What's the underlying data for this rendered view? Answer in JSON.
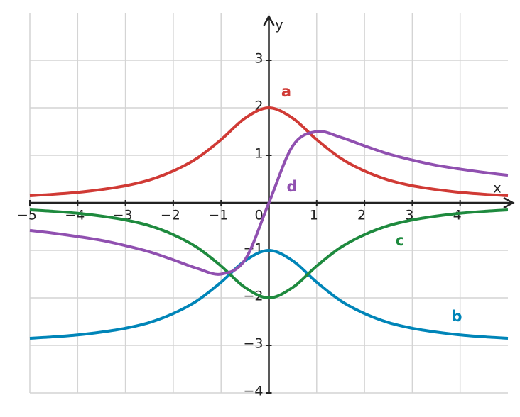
{
  "chart_data": {
    "type": "line",
    "x_label": "x",
    "y_label": "y",
    "x": [
      -5,
      -4.5,
      -4,
      -3.5,
      -3,
      -2.5,
      -2,
      -1.5,
      -1,
      -0.5,
      0,
      0.5,
      1,
      1.5,
      2,
      2.5,
      3,
      3.5,
      4,
      4.5,
      5
    ],
    "series": [
      {
        "name": "a",
        "color": "#d03a35",
        "values": [
          0.15,
          0.18,
          0.22,
          0.28,
          0.36,
          0.48,
          0.67,
          0.94,
          1.33,
          1.78,
          2,
          1.78,
          1.33,
          0.94,
          0.67,
          0.48,
          0.36,
          0.28,
          0.22,
          0.18,
          0.15
        ]
      },
      {
        "name": "b",
        "color": "#0085b8",
        "values": [
          -2.85,
          -2.82,
          -2.78,
          -2.72,
          -2.64,
          -2.52,
          -2.33,
          -2.06,
          -1.67,
          -1.22,
          -1,
          -1.22,
          -1.67,
          -2.06,
          -2.33,
          -2.52,
          -2.64,
          -2.72,
          -2.78,
          -2.82,
          -2.85
        ]
      },
      {
        "name": "c",
        "color": "#1e8a3e",
        "values": [
          -0.15,
          -0.18,
          -0.22,
          -0.28,
          -0.36,
          -0.48,
          -0.67,
          -0.94,
          -1.33,
          -1.78,
          -2,
          -1.78,
          -1.33,
          -0.94,
          -0.67,
          -0.48,
          -0.36,
          -0.28,
          -0.22,
          -0.18,
          -0.15
        ]
      },
      {
        "name": "d",
        "color": "#9050b0",
        "values": [
          -0.58,
          -0.64,
          -0.71,
          -0.79,
          -0.9,
          -1.03,
          -1.2,
          -1.38,
          -1.5,
          -1.2,
          0,
          1.2,
          1.5,
          1.38,
          1.2,
          1.03,
          0.9,
          0.79,
          0.71,
          0.64,
          0.58
        ]
      }
    ],
    "xlim": [
      -5,
      5
    ],
    "ylim": [
      -4,
      4
    ],
    "xticks": [
      {
        "value": -5,
        "label": "−5"
      },
      {
        "value": -4,
        "label": "−4"
      },
      {
        "value": -3,
        "label": "−3"
      },
      {
        "value": -2,
        "label": "−2"
      },
      {
        "value": -1,
        "label": "−1"
      },
      0,
      1,
      2,
      3,
      4
    ],
    "yticks": [
      {
        "value": -4,
        "label": "−4"
      },
      {
        "value": -3,
        "label": "−3"
      },
      {
        "value": -2,
        "label": "−2"
      },
      {
        "value": -1,
        "label": "−1"
      },
      1,
      2,
      3
    ],
    "grid": true
  }
}
